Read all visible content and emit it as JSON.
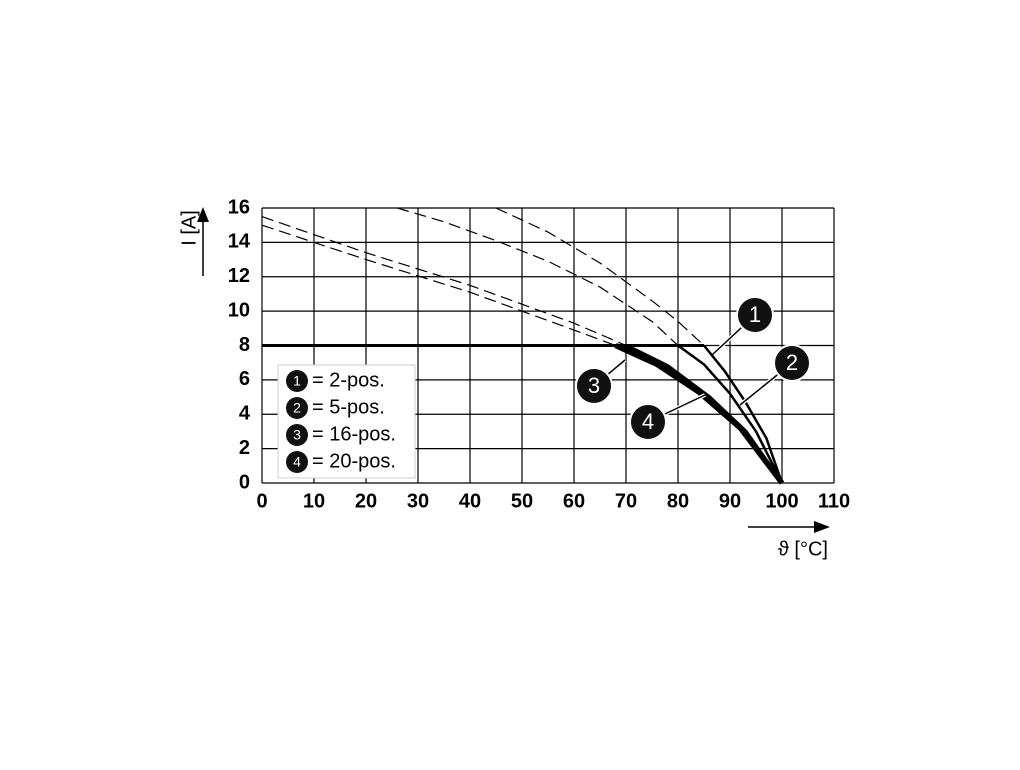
{
  "chart_data": {
    "type": "line",
    "x_label": "ϑ [°C]",
    "y_label": "I [A]",
    "xlim": [
      0,
      110
    ],
    "xticks": [
      0,
      10,
      20,
      30,
      40,
      50,
      60,
      70,
      80,
      90,
      100,
      110
    ],
    "ylim": [
      0,
      16
    ],
    "yticks": [
      0,
      2,
      4,
      6,
      8,
      10,
      12,
      14,
      16
    ],
    "grid": true,
    "limit_line": {
      "y": 8,
      "x": [
        0,
        85
      ]
    },
    "series": [
      {
        "label": "1",
        "name": "= 2-pos.",
        "color": "#000000",
        "x_dashed": [
          26,
          35,
          45,
          55,
          65,
          75,
          80
        ],
        "values_dashed": [
          16,
          15.2,
          14.1,
          12.9,
          11.4,
          9.4,
          8
        ],
        "x": [
          80,
          85,
          90,
          95,
          100
        ],
        "values": [
          8,
          6.9,
          5.2,
          3,
          0
        ]
      },
      {
        "label": "2",
        "name": "= 5-pos.",
        "color": "#000000",
        "x_dashed": [
          45,
          55,
          65,
          75,
          80,
          85
        ],
        "values_dashed": [
          16,
          14.6,
          12.8,
          10.6,
          9.4,
          8
        ],
        "x": [
          85,
          89,
          93,
          97,
          100
        ],
        "values": [
          8,
          6.5,
          4.7,
          2.6,
          0
        ]
      },
      {
        "label": "3",
        "name": "= 16-pos.",
        "color": "#000000",
        "x_dashed": [
          0,
          20,
          40,
          60,
          70
        ],
        "values_dashed": [
          15.5,
          13.4,
          11.5,
          9.3,
          8
        ],
        "x": [
          70,
          78,
          86,
          93,
          100
        ],
        "values": [
          8,
          6.8,
          5,
          3,
          0
        ]
      },
      {
        "label": "4",
        "name": "= 20-pos.",
        "color": "#000000",
        "x_dashed": [
          0,
          20,
          40,
          60,
          68
        ],
        "values_dashed": [
          15,
          13,
          11.1,
          8.9,
          8
        ],
        "x": [
          68,
          76,
          84,
          92,
          100
        ],
        "values": [
          8,
          6.9,
          5.3,
          3.2,
          0
        ]
      }
    ]
  }
}
